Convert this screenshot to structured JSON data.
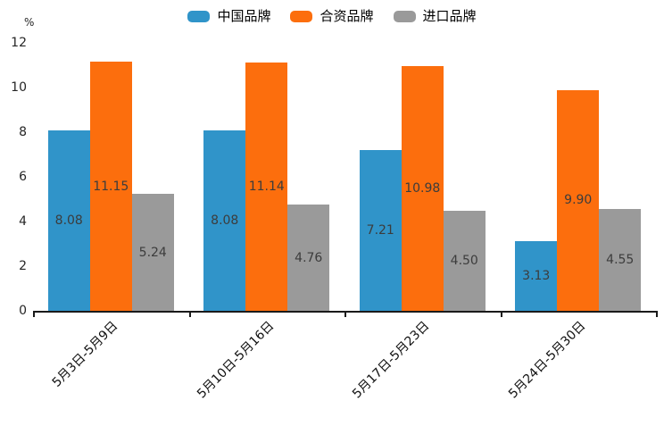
{
  "chart_data": {
    "type": "bar",
    "title": "",
    "unit_label": "%",
    "categories": [
      "5月3日-5月9日",
      "5月10日-5月16日",
      "5月17日-5月23日",
      "5月24日-5月30日"
    ],
    "series": [
      {
        "name": "中国品牌",
        "color": "#3094C9",
        "values": [
          8.08,
          8.08,
          7.21,
          3.13
        ]
      },
      {
        "name": "合资品牌",
        "color": "#FC6E0D",
        "values": [
          11.15,
          11.14,
          10.98,
          9.9
        ]
      },
      {
        "name": "进口品牌",
        "color": "#9A9A9A",
        "values": [
          5.24,
          4.76,
          4.5,
          4.55
        ]
      }
    ],
    "ylim": [
      0,
      12
    ],
    "yticks": [
      0,
      2,
      4,
      6,
      8,
      10,
      12
    ],
    "grid": false,
    "legend_position": "top-center",
    "value_label_position": "inside-center",
    "value_label_decimals": 2
  },
  "colors": {
    "background": "#ffffff",
    "axis": "#1a1a1a",
    "tick_label": "#262626",
    "value_label": "#3c3c3c",
    "legend_text": "#000000"
  }
}
